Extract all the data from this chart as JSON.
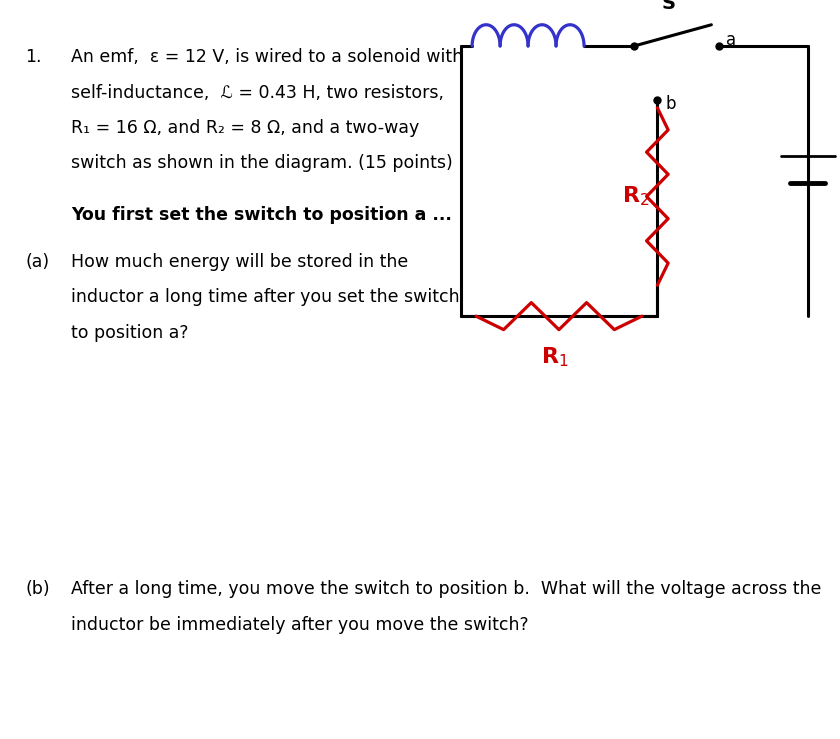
{
  "bg_color": "#ffffff",
  "black": "#000000",
  "red": "#cc0000",
  "blue": "#3333cc",
  "dark_blue_text": "#1a1aaa",
  "fig_w": 8.4,
  "fig_h": 7.39,
  "dpi": 100,
  "font_family": "DejaVu Sans",
  "fs_main": 12.5,
  "fs_bold": 12.5,
  "fs_small": 12.0,
  "line1": "An emf,  ε = 12 V, is wired to a solenoid with",
  "line2": "self-inductance,  ℒ = 0.43 H, two resistors,",
  "line3": "R₁ = 16 Ω, and R₂ = 8 Ω, and a two-way",
  "line4": "switch as shown in the diagram. (15 points)",
  "bold_line": "You first set the switch to position a ...",
  "part_a_line1": "How much energy will be stored in the",
  "part_a_line2": "inductor a long time after you set the switch",
  "part_a_line3": "to position a?",
  "part_b_line1": "After a long time, you move the switch to position b.  What will the voltage across the",
  "part_b_line2": "inductor be immediately after you move the switch?"
}
